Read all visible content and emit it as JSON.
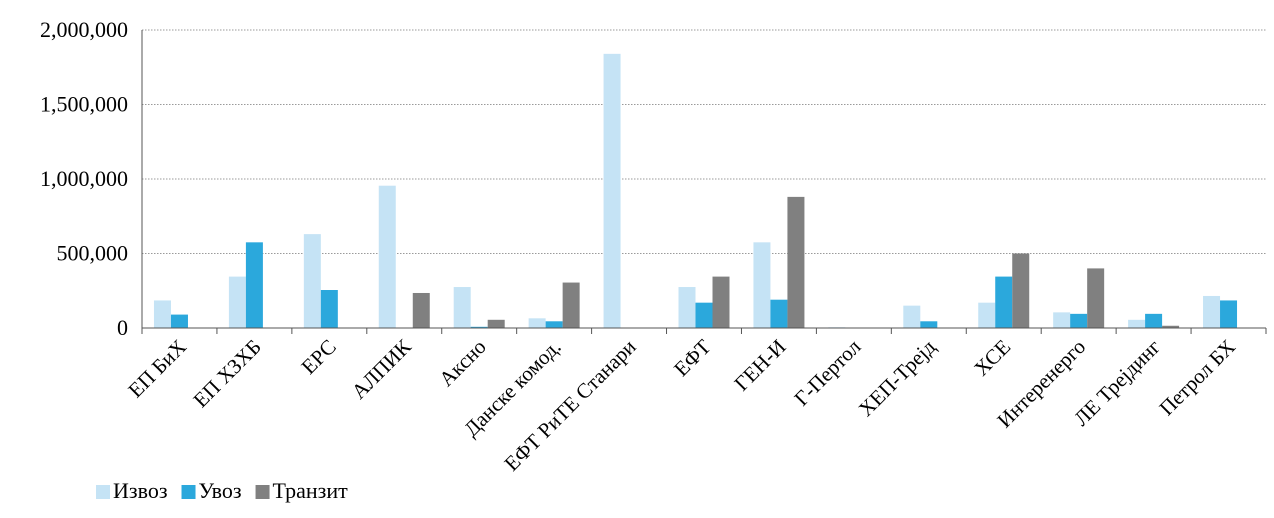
{
  "chart_data": {
    "type": "bar",
    "title": "",
    "xlabel": "",
    "ylabel": "",
    "ylim": [
      0,
      2000000
    ],
    "yticks": [
      0,
      500000,
      1000000,
      1500000,
      2000000
    ],
    "ytick_labels": [
      "0",
      "500,000",
      "1,000,000",
      "1,500,000",
      "2,000,000"
    ],
    "grid": true,
    "legend_position": "bottom-left",
    "categories": [
      "ЕП БиХ",
      "ЕП ХЗХБ",
      "ЕРС",
      "АЛПИК",
      "Аксно",
      "Данске комод.",
      "ЕФТ РиТЕ Станари",
      "ЕФТ",
      "ГЕН-И",
      "Г-Пертол",
      "ХЕП-Трејд",
      "ХСЕ",
      "Интеренерго",
      "ЛЕ Трејдинг",
      "Петрол БХ"
    ],
    "series": [
      {
        "name": "Извоз",
        "color": "#c5e3f5",
        "values": [
          185000,
          345000,
          630000,
          955000,
          275000,
          65000,
          1840000,
          275000,
          575000,
          5000,
          150000,
          170000,
          105000,
          55000,
          215000
        ]
      },
      {
        "name": "Увоз",
        "color": "#2ba8dc",
        "values": [
          90000,
          575000,
          255000,
          0,
          8000,
          45000,
          0,
          170000,
          190000,
          0,
          45000,
          345000,
          95000,
          95000,
          185000
        ]
      },
      {
        "name": "Транзит",
        "color": "#808080",
        "values": [
          0,
          0,
          0,
          235000,
          55000,
          305000,
          0,
          345000,
          880000,
          0,
          0,
          500000,
          400000,
          15000,
          0
        ]
      }
    ]
  }
}
